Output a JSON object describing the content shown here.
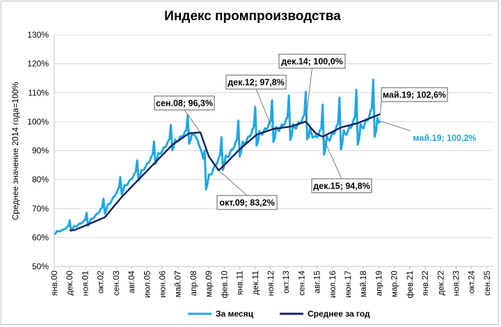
{
  "chart_data": {
    "type": "line",
    "title": "Индекс промпроизводства",
    "ylabel": "Среднее значение 2014 года=100%",
    "xlabel": "",
    "ylim": [
      50,
      130
    ],
    "yticks": [
      "50%",
      "60%",
      "70%",
      "80%",
      "90%",
      "100%",
      "110%",
      "120%",
      "130%"
    ],
    "ytick_values": [
      50,
      60,
      70,
      80,
      90,
      100,
      110,
      120,
      130
    ],
    "x_start": "янв.00",
    "x_end": "янв.26",
    "xticks": [
      "янв.00",
      "дек.00",
      "ноя.01",
      "окт.02",
      "сен.03",
      "авг.04",
      "июл.05",
      "июн.06",
      "май.07",
      "апр.08",
      "мар.09",
      "фев.10",
      "янв.11",
      "дек.11",
      "ноя.12",
      "окт.13",
      "сен.14",
      "авг.15",
      "июл.16",
      "июн.17",
      "май.18",
      "апр.19",
      "мар.20",
      "фев.21",
      "янв.22",
      "дек.22",
      "ноя.23",
      "окт.24",
      "сен.25"
    ],
    "legend": [
      {
        "name": "За месяц",
        "color": "#1ea7e6"
      },
      {
        "name": "Среднее за год",
        "color": "#14235a"
      }
    ],
    "series": [
      {
        "name": "За месяц",
        "color": "#1ea7e6",
        "anchors_month_value": [
          [
            0,
            62
          ],
          [
            6,
            62.5
          ],
          [
            12,
            63.5
          ],
          [
            24,
            65.5
          ],
          [
            36,
            70
          ],
          [
            48,
            77
          ],
          [
            60,
            82
          ],
          [
            72,
            88
          ],
          [
            84,
            93
          ],
          [
            96,
            95.5
          ],
          [
            100,
            96
          ],
          [
            104,
            90
          ],
          [
            108,
            80
          ],
          [
            114,
            84
          ],
          [
            120,
            87
          ],
          [
            132,
            92
          ],
          [
            144,
            96
          ],
          [
            156,
            97.5
          ],
          [
            168,
            98.5
          ],
          [
            180,
            99
          ],
          [
            186,
            94
          ],
          [
            192,
            94
          ],
          [
            204,
            96
          ],
          [
            216,
            98
          ],
          [
            228,
            101
          ],
          [
            232,
            100.2
          ]
        ],
        "seasonal_amplitude_start": 2,
        "seasonal_amplitude_end": 14
      },
      {
        "name": "Среднее за год",
        "color": "#14235a",
        "start_month": 11,
        "anchors_month_value": [
          [
            11,
            62.5
          ],
          [
            14,
            62.5
          ],
          [
            24,
            64.5
          ],
          [
            36,
            67
          ],
          [
            48,
            74
          ],
          [
            60,
            80
          ],
          [
            72,
            86
          ],
          [
            84,
            92
          ],
          [
            96,
            96
          ],
          [
            104,
            96.3
          ],
          [
            110,
            88
          ],
          [
            117,
            83.2
          ],
          [
            120,
            84.5
          ],
          [
            132,
            90.5
          ],
          [
            144,
            95.5
          ],
          [
            156,
            97.5
          ],
          [
            168,
            98.3
          ],
          [
            179,
            100
          ],
          [
            186,
            96
          ],
          [
            191,
            94.8
          ],
          [
            204,
            98
          ],
          [
            216,
            99.5
          ],
          [
            232,
            102.6
          ]
        ]
      }
    ],
    "annotations": [
      {
        "label": "сен.08; 96,3%",
        "month": 104,
        "value": 96.3,
        "series": "Среднее за год"
      },
      {
        "label": "окт.09; 83,2%",
        "month": 117,
        "value": 83.2,
        "series": "Среднее за год"
      },
      {
        "label": "дек.12; 97,8%",
        "month": 155,
        "value": 97.8,
        "series": "Среднее за год"
      },
      {
        "label": "дек.14; 100,0%",
        "month": 179,
        "value": 100.0,
        "series": "Среднее за год"
      },
      {
        "label": "дек.15; 94,8%",
        "month": 191,
        "value": 94.8,
        "series": "Среднее за год"
      },
      {
        "label": "май.19; 102,6%",
        "month": 232,
        "value": 102.6,
        "series": "Среднее за год"
      },
      {
        "label": "май.19; 100,2%",
        "month": 232,
        "value": 100.2,
        "series": "За месяц"
      }
    ]
  }
}
